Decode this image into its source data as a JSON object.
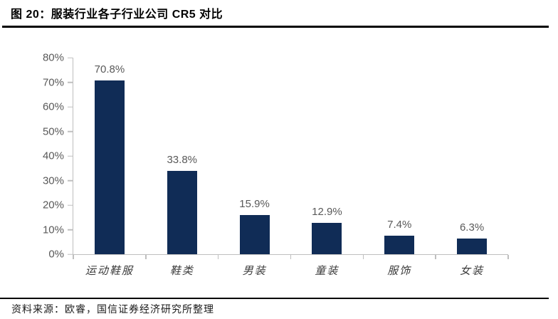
{
  "header": {
    "title": "图 20：服装行业各子行业公司 CR5 对比"
  },
  "footer": {
    "source_label": "资料来源：",
    "source_text": "欧睿，国信证券经济研究所整理"
  },
  "colors": {
    "bar": "#102C56",
    "value_label": "#595959",
    "axis": "#BFBFBF",
    "rule": "#000000"
  },
  "chart_data": {
    "type": "bar",
    "title": "服装行业各子行业公司 CR5 对比",
    "categories": [
      "运动鞋服",
      "鞋类",
      "男装",
      "童装",
      "服饰",
      "女装"
    ],
    "values": [
      70.8,
      33.8,
      15.9,
      12.9,
      7.4,
      6.3
    ],
    "data_labels": [
      "70.8%",
      "33.8%",
      "15.9%",
      "12.9%",
      "7.4%",
      "6.3%"
    ],
    "xlabel": "",
    "ylabel": "",
    "ylim": [
      0,
      80
    ],
    "ytick_step": 10,
    "ytick_labels": [
      "0%",
      "10%",
      "20%",
      "30%",
      "40%",
      "50%",
      "60%",
      "70%",
      "80%"
    ],
    "grid": false,
    "legend_position": "none",
    "unit": "percent"
  }
}
